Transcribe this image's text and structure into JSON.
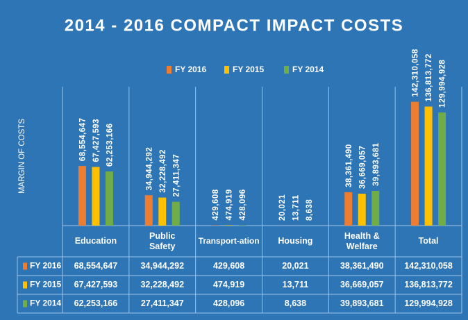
{
  "chart_data": {
    "type": "bar",
    "title": "2014 - 2016 COMPACT IMPACT COSTS",
    "y_label": "MARGIN OF COSTS",
    "categories": [
      "Education",
      "Public Safety",
      "Transport-ation",
      "Housing",
      "Health & Welfare",
      "Total"
    ],
    "ylim": [
      0,
      150000000
    ],
    "series": [
      {
        "name": "FY 2016",
        "color": "#ed7d31",
        "values": [
          68554647,
          34944292,
          429608,
          20021,
          38361490,
          142310058
        ],
        "value_labels": [
          "68,554,647",
          "34,944,292",
          "429,608",
          "20,021",
          "38,361,490",
          "142,310,058"
        ]
      },
      {
        "name": "FY 2015",
        "color": "#ffc000",
        "values": [
          67427593,
          32228492,
          474919,
          13711,
          36669057,
          136813772
        ],
        "value_labels": [
          "67,427,593",
          "32,228,492",
          "474,919",
          "13,711",
          "36,669,057",
          "136,813,772"
        ]
      },
      {
        "name": "FY 2014",
        "color": "#70ad47",
        "values": [
          62253166,
          27411347,
          428096,
          8638,
          39893681,
          129994928
        ],
        "value_labels": [
          "62,253,166",
          "27,411,347",
          "428,096",
          "8,638",
          "39,893,681",
          "129,994,928"
        ]
      }
    ]
  }
}
